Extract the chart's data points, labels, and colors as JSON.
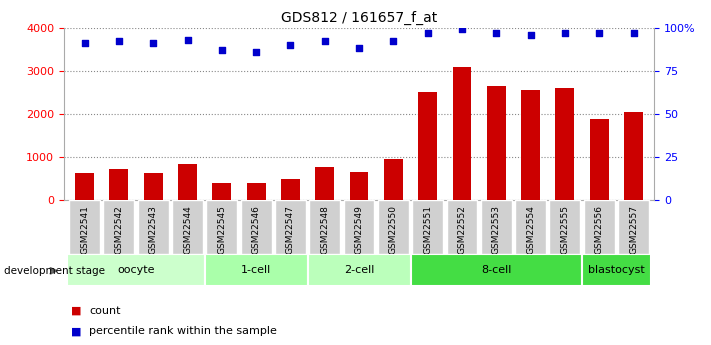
{
  "title": "GDS812 / 161657_f_at",
  "samples": [
    "GSM22541",
    "GSM22542",
    "GSM22543",
    "GSM22544",
    "GSM22545",
    "GSM22546",
    "GSM22547",
    "GSM22548",
    "GSM22549",
    "GSM22550",
    "GSM22551",
    "GSM22552",
    "GSM22553",
    "GSM22554",
    "GSM22555",
    "GSM22556",
    "GSM22557"
  ],
  "counts": [
    620,
    730,
    640,
    830,
    400,
    390,
    500,
    760,
    650,
    960,
    2500,
    3080,
    2640,
    2550,
    2600,
    1870,
    2050
  ],
  "percentiles": [
    91,
    92,
    91,
    93,
    87,
    86,
    90,
    92,
    88,
    92,
    97,
    99,
    97,
    96,
    97,
    97,
    97
  ],
  "bar_color": "#cc0000",
  "dot_color": "#0000cc",
  "ylim_left": [
    0,
    4000
  ],
  "ylim_right": [
    0,
    100
  ],
  "yticks_left": [
    0,
    1000,
    2000,
    3000,
    4000
  ],
  "yticks_right": [
    0,
    25,
    50,
    75,
    100
  ],
  "ytick_labels_right": [
    "0",
    "25",
    "50",
    "75",
    "100%"
  ],
  "groups": [
    {
      "label": "oocyte",
      "start": 0,
      "end": 4,
      "color": "#ccffcc"
    },
    {
      "label": "1-cell",
      "start": 4,
      "end": 7,
      "color": "#aaffaa"
    },
    {
      "label": "2-cell",
      "start": 7,
      "end": 10,
      "color": "#bbffbb"
    },
    {
      "label": "8-cell",
      "start": 10,
      "end": 15,
      "color": "#44dd44"
    },
    {
      "label": "blastocyst",
      "start": 15,
      "end": 17,
      "color": "#44dd44"
    }
  ],
  "dev_stage_label": "development stage",
  "legend_count_label": "count",
  "legend_pct_label": "percentile rank within the sample",
  "bg_color": "#ffffff"
}
